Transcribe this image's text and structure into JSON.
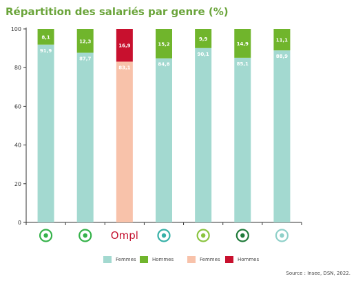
{
  "chart_data": {
    "type": "bar",
    "stacked": true,
    "title": "Répartition des salariés par genre (%)",
    "ylim": [
      0,
      100
    ],
    "yticks": [
      0,
      20,
      40,
      60,
      80,
      100
    ],
    "categories": [
      "icon-1",
      "icon-2",
      "Ompl",
      "icon-4",
      "icon-5",
      "icon-6",
      "icon-7"
    ],
    "category_colors": [
      "#35b24a",
      "#35b24a",
      "#c41230",
      "#36b0a7",
      "#8ac43f",
      "#1f7a3a",
      "#8fd0c9"
    ],
    "series": [
      {
        "name": "Femmes",
        "values": [
          91.9,
          87.7,
          83.1,
          84.8,
          90.1,
          85.1,
          88.9
        ],
        "labels": [
          "91,9",
          "87,7",
          "83,1",
          "84,8",
          "90,1",
          "85,1",
          "88,9"
        ],
        "colors": [
          "#a3d9d0",
          "#a3d9d0",
          "#f8c2aa",
          "#a3d9d0",
          "#a3d9d0",
          "#a3d9d0",
          "#a3d9d0"
        ]
      },
      {
        "name": "Hommes",
        "values": [
          8.1,
          12.3,
          16.9,
          15.2,
          9.9,
          14.9,
          11.1
        ],
        "labels": [
          "8,1",
          "12,3",
          "16,9",
          "15,2",
          "9,9",
          "14,9",
          "11,1"
        ],
        "colors": [
          "#70b52c",
          "#70b52c",
          "#c8102e",
          "#70b52c",
          "#70b52c",
          "#70b52c",
          "#70b52c"
        ]
      }
    ],
    "legend": [
      {
        "label": "Femmes",
        "color": "#a3d9d0"
      },
      {
        "label": "Hommes",
        "color": "#70b52c"
      },
      {
        "label": "Femmes",
        "color": "#f8c2aa"
      },
      {
        "label": "Hommes",
        "color": "#c8102e"
      }
    ],
    "source": "Source : Insee, DSN, 2022."
  }
}
